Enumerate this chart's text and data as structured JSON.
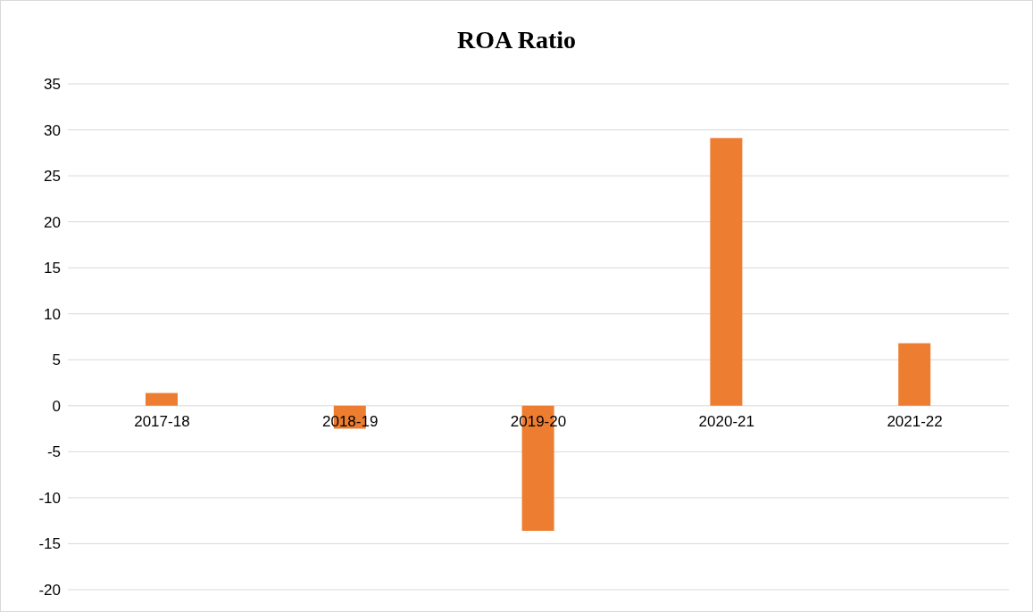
{
  "chart_data": {
    "type": "bar",
    "title": "ROA Ratio",
    "categories": [
      "2017-18",
      "2018-19",
      "2019-20",
      "2020-21",
      "2021-22"
    ],
    "values": [
      1.4,
      -2.5,
      -13.6,
      29.1,
      6.8
    ],
    "color": "#ed7d31",
    "ylim": [
      -20,
      35
    ],
    "yticks": [
      -20,
      -15,
      -10,
      -5,
      0,
      5,
      10,
      15,
      20,
      25,
      30,
      35
    ],
    "grid": "y"
  }
}
